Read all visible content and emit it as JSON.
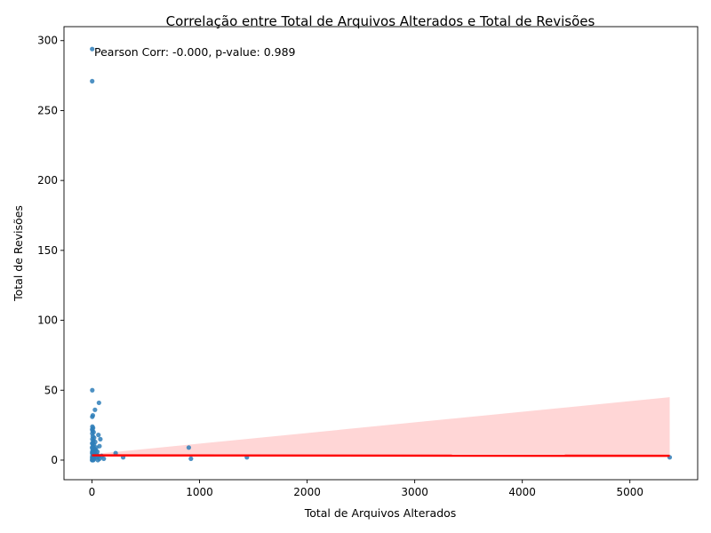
{
  "chart_data": {
    "type": "scatter",
    "title": "Correlação entre Total de Arquivos Alterados e Total de Revisões",
    "xlabel": "Total de Arquivos Alterados",
    "ylabel": "Total de Revisões",
    "xlim": [
      -260,
      5630
    ],
    "ylim": [
      -14,
      310
    ],
    "xticks": [
      0,
      1000,
      2000,
      3000,
      4000,
      5000
    ],
    "yticks": [
      0,
      50,
      100,
      150,
      200,
      250,
      300
    ],
    "annotation": "Pearson Corr: -0.000, p-value: 0.989",
    "grid": false,
    "colors": {
      "points": "#2e7eb9",
      "regression": "#ff0000",
      "confidence": "#ffcccc"
    },
    "regression": {
      "x": [
        0,
        5370
      ],
      "y": [
        3.4,
        3.1
      ]
    },
    "confidence_band": {
      "x": [
        0,
        5370
      ],
      "upper": [
        4.2,
        45
      ],
      "lower": [
        2.6,
        2.0
      ]
    },
    "points": [
      {
        "x": 2,
        "y": 294
      },
      {
        "x": 2,
        "y": 271
      },
      {
        "x": 3,
        "y": 50
      },
      {
        "x": 65,
        "y": 41
      },
      {
        "x": 28,
        "y": 36
      },
      {
        "x": 8,
        "y": 32
      },
      {
        "x": 3,
        "y": 31
      },
      {
        "x": 4,
        "y": 24
      },
      {
        "x": 10,
        "y": 23
      },
      {
        "x": 2,
        "y": 22
      },
      {
        "x": 6,
        "y": 21
      },
      {
        "x": 15,
        "y": 20
      },
      {
        "x": 3,
        "y": 19
      },
      {
        "x": 60,
        "y": 18
      },
      {
        "x": 8,
        "y": 17
      },
      {
        "x": 20,
        "y": 16
      },
      {
        "x": 4,
        "y": 15
      },
      {
        "x": 78,
        "y": 15
      },
      {
        "x": 12,
        "y": 14
      },
      {
        "x": 30,
        "y": 13
      },
      {
        "x": 2,
        "y": 12
      },
      {
        "x": 6,
        "y": 12
      },
      {
        "x": 18,
        "y": 11
      },
      {
        "x": 9,
        "y": 10
      },
      {
        "x": 70,
        "y": 10
      },
      {
        "x": 40,
        "y": 9
      },
      {
        "x": 1,
        "y": 9
      },
      {
        "x": 900,
        "y": 9
      },
      {
        "x": 25,
        "y": 8
      },
      {
        "x": 5,
        "y": 8
      },
      {
        "x": 14,
        "y": 7
      },
      {
        "x": 35,
        "y": 7
      },
      {
        "x": 3,
        "y": 6
      },
      {
        "x": 50,
        "y": 6
      },
      {
        "x": 7,
        "y": 6
      },
      {
        "x": 11,
        "y": 5
      },
      {
        "x": 22,
        "y": 5
      },
      {
        "x": 2,
        "y": 5
      },
      {
        "x": 220,
        "y": 5
      },
      {
        "x": 45,
        "y": 4
      },
      {
        "x": 8,
        "y": 4
      },
      {
        "x": 16,
        "y": 4
      },
      {
        "x": 4,
        "y": 3
      },
      {
        "x": 60,
        "y": 3
      },
      {
        "x": 30,
        "y": 3
      },
      {
        "x": 90,
        "y": 3
      },
      {
        "x": 10,
        "y": 2
      },
      {
        "x": 2,
        "y": 2
      },
      {
        "x": 40,
        "y": 2
      },
      {
        "x": 290,
        "y": 2
      },
      {
        "x": 1440,
        "y": 2
      },
      {
        "x": 5370,
        "y": 2
      },
      {
        "x": 6,
        "y": 1
      },
      {
        "x": 20,
        "y": 1
      },
      {
        "x": 70,
        "y": 1
      },
      {
        "x": 110,
        "y": 1
      },
      {
        "x": 920,
        "y": 1
      },
      {
        "x": 3,
        "y": 1
      },
      {
        "x": 13,
        "y": 0
      },
      {
        "x": 1,
        "y": 0
      },
      {
        "x": 55,
        "y": 0
      },
      {
        "x": 5,
        "y": 0
      }
    ]
  }
}
